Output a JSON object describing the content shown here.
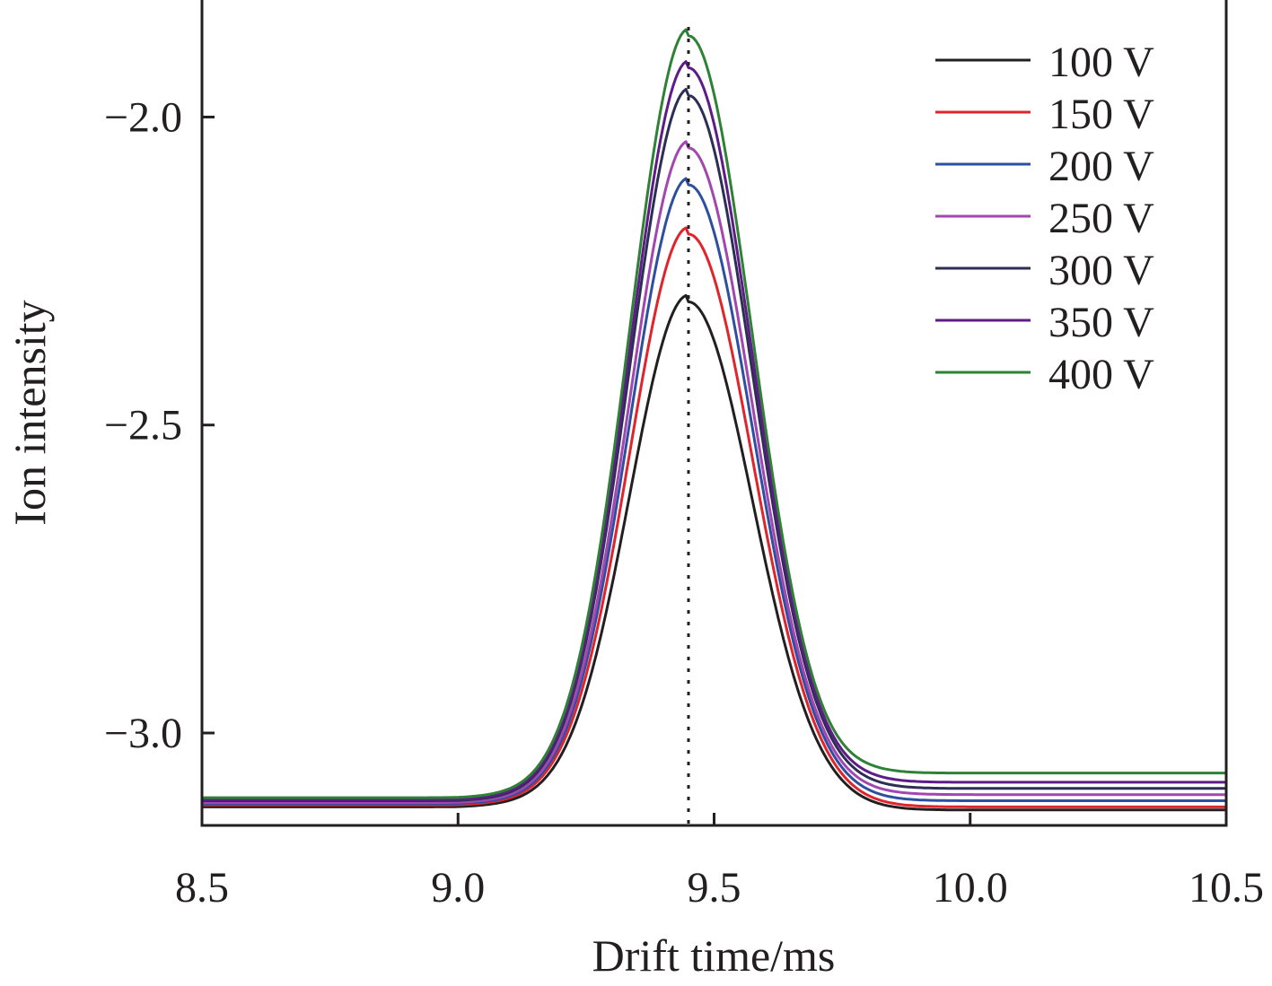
{
  "chart_data": {
    "type": "line",
    "title": "",
    "xlabel": "Drift time/ms",
    "ylabel": "Ion intensity",
    "xlim": [
      8.5,
      10.5
    ],
    "ylim": [
      -3.15,
      -1.81
    ],
    "x_ticks": [
      {
        "value": 8.5,
        "label": "8.5"
      },
      {
        "value": 9.0,
        "label": "9.0"
      },
      {
        "value": 9.5,
        "label": "9.5"
      },
      {
        "value": 10.0,
        "label": "10.0"
      },
      {
        "value": 10.5,
        "label": "10.5"
      }
    ],
    "y_ticks": [
      {
        "value": -2.0,
        "label": "−2.0"
      },
      {
        "value": -2.5,
        "label": "−2.5"
      },
      {
        "value": -3.0,
        "label": "−3.0"
      }
    ],
    "reference_line": {
      "x": 9.45,
      "style": "dotted"
    },
    "legend_position": "top-right",
    "grid": false,
    "peak_center": 9.45,
    "series": [
      {
        "name": "100 V",
        "color": "#231f20",
        "baseline_left": -3.12,
        "peak": -2.3,
        "baseline_right": -3.125
      },
      {
        "name": "150 V",
        "color": "#e0242b",
        "baseline_left": -3.117,
        "peak": -2.19,
        "baseline_right": -3.12
      },
      {
        "name": "200 V",
        "color": "#2e4fa0",
        "baseline_left": -3.115,
        "peak": -2.11,
        "baseline_right": -3.11
      },
      {
        "name": "250 V",
        "color": "#a246b0",
        "baseline_left": -3.113,
        "peak": -2.05,
        "baseline_right": -3.1
      },
      {
        "name": "300 V",
        "color": "#2d2e54",
        "baseline_left": -3.11,
        "peak": -1.965,
        "baseline_right": -3.09
      },
      {
        "name": "350 V",
        "color": "#5e1c86",
        "baseline_left": -3.108,
        "peak": -1.92,
        "baseline_right": -3.08
      },
      {
        "name": "400 V",
        "color": "#2f8136",
        "baseline_left": -3.105,
        "peak": -1.868,
        "baseline_right": -3.065
      }
    ]
  }
}
